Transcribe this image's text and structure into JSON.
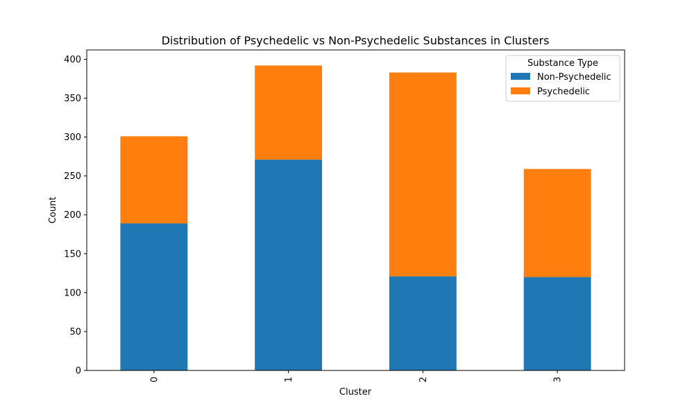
{
  "chart_data": {
    "type": "bar",
    "stacked": true,
    "title": "Distribution of Psychedelic vs Non-Psychedelic Substances in Clusters",
    "xlabel": "Cluster",
    "ylabel": "Count",
    "categories": [
      "0",
      "1",
      "2",
      "3"
    ],
    "ylim": [
      0,
      412
    ],
    "yticks": [
      0,
      50,
      100,
      150,
      200,
      250,
      300,
      350,
      400
    ],
    "grid": false,
    "series": [
      {
        "name": "Non-Psychedelic",
        "color": "#1f77b4",
        "values": [
          189,
          271,
          121,
          120
        ]
      },
      {
        "name": "Psychedelic",
        "color": "#ff7f0e",
        "values": [
          112,
          121,
          262,
          139
        ]
      }
    ],
    "legend": {
      "title": "Substance Type",
      "placement": "top-right"
    }
  }
}
